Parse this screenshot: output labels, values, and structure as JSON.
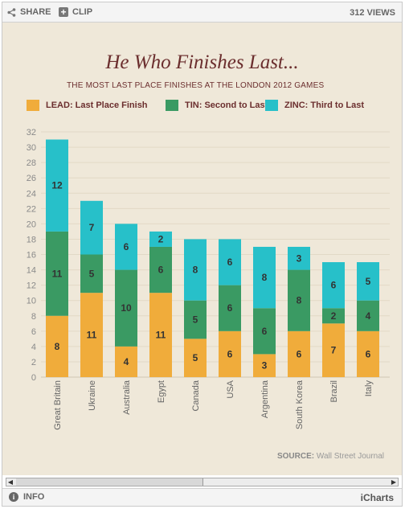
{
  "toolbar": {
    "share_label": "SHARE",
    "clip_label": "CLIP",
    "views_label": "312 VIEWS"
  },
  "footer": {
    "info_label": "INFO",
    "brand_label": "iCharts"
  },
  "chart_data": {
    "type": "bar",
    "stacked": true,
    "title": "He Who Finishes Last...",
    "subtitle": "THE MOST LAST PLACE FINISHES AT THE LONDON 2012 GAMES",
    "categories": [
      "Great Britain",
      "Ukraine",
      "Australia",
      "Egypt",
      "Canada",
      "USA",
      "Argentina",
      "South Korea",
      "Brazil",
      "Italy"
    ],
    "series": [
      {
        "name": "LEAD: Last Place Finish",
        "color": "#f0ac3b",
        "values": [
          8,
          11,
          4,
          11,
          5,
          6,
          3,
          6,
          7,
          6
        ]
      },
      {
        "name": "TIN: Second to Last",
        "color": "#3a9a63",
        "values": [
          11,
          5,
          10,
          6,
          5,
          6,
          6,
          8,
          2,
          4
        ]
      },
      {
        "name": "ZINC: Third to Last",
        "color": "#27c0c9",
        "values": [
          12,
          7,
          6,
          2,
          8,
          6,
          8,
          3,
          6,
          5
        ]
      }
    ],
    "ylim": [
      0,
      32
    ],
    "yticks": [
      0,
      2,
      4,
      6,
      8,
      10,
      12,
      14,
      16,
      18,
      20,
      22,
      24,
      26,
      28,
      30,
      32
    ],
    "grid": true,
    "legend_position": "top",
    "source_prefix": "SOURCE:",
    "source": "Wall Street Journal"
  }
}
